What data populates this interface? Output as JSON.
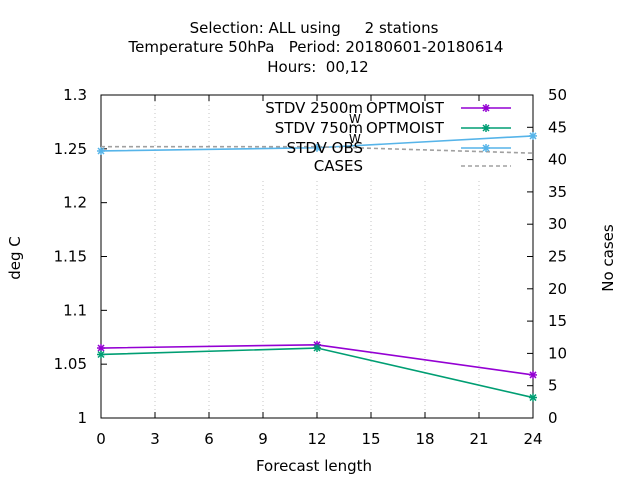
{
  "chart_data": {
    "type": "line",
    "title": [
      "Selection: ALL using     2 stations",
      "Temperature 50hPa   Period: 20180601-20180614",
      "Hours:  00,12"
    ],
    "xlabel": "Forecast length",
    "ylabel": "deg C",
    "y2label": "No cases",
    "xlim": [
      0,
      24
    ],
    "ylim": [
      1,
      1.3
    ],
    "y2lim": [
      0,
      50
    ],
    "xticks": [
      "0",
      "3",
      "6",
      "9",
      "12",
      "15",
      "18",
      "21",
      "24"
    ],
    "yticks": [
      "1",
      "1.05",
      "1.1",
      "1.15",
      "1.2",
      "1.25",
      "1.3"
    ],
    "y2ticks": [
      "0",
      "5",
      "10",
      "15",
      "20",
      "25",
      "30",
      "35",
      "40",
      "45",
      "50"
    ],
    "grid": true,
    "legend_position": "top-right",
    "series": [
      {
        "name": "STDV 2500m",
        "legend_sub": "W",
        "legend_suffix": "OPTMOIST",
        "color": "#9400d3",
        "marker": "star",
        "axis": "y",
        "x": [
          0,
          12,
          24
        ],
        "values": [
          1.065,
          1.068,
          1.04
        ]
      },
      {
        "name": "STDV 750m",
        "legend_sub": "W",
        "legend_suffix": "OPTMOIST",
        "color": "#009e73",
        "marker": "star",
        "axis": "y",
        "x": [
          0,
          12,
          24
        ],
        "values": [
          1.059,
          1.065,
          1.019
        ]
      },
      {
        "name": "STDV OBS",
        "legend_sub": "",
        "legend_suffix": "",
        "color": "#56b4e9",
        "marker": "star",
        "axis": "y",
        "x": [
          0,
          12,
          24
        ],
        "values": [
          1.248,
          1.251,
          1.262
        ]
      },
      {
        "name": "CASES",
        "legend_sub": "",
        "legend_suffix": "",
        "color": "#a0a0a0",
        "marker": "none",
        "dash": true,
        "axis": "y2",
        "x": [
          0,
          12,
          24
        ],
        "values": [
          42,
          42,
          41
        ]
      }
    ]
  }
}
